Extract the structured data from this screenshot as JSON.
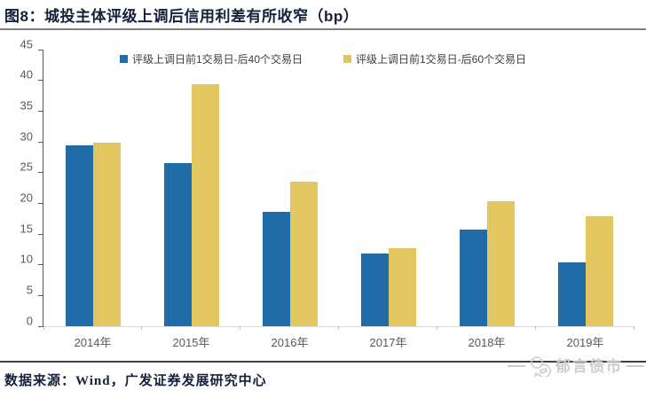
{
  "header": {
    "title": "图8：城投主体评级上调后信用利差有所收窄（bp）"
  },
  "chart_data": {
    "type": "bar",
    "categories": [
      "2014年",
      "2015年",
      "2016年",
      "2017年",
      "2018年",
      "2019年"
    ],
    "series": [
      {
        "name": "评级上调日前1交易日-后40个交易日",
        "color": "#1F6CA8",
        "values": [
          29.4,
          26.6,
          18.6,
          11.8,
          15.7,
          10.4
        ]
      },
      {
        "name": "评级上调日前1交易日-后60个交易日",
        "color": "#E2C65F",
        "values": [
          29.8,
          39.4,
          23.5,
          12.7,
          20.3,
          17.9
        ]
      }
    ],
    "ylim": [
      0,
      45
    ],
    "yticks": [
      0,
      5,
      10,
      15,
      20,
      25,
      30,
      35,
      40,
      45
    ],
    "grid": false,
    "legend_position": "top-center",
    "xlabel": "",
    "ylabel": ""
  },
  "footer": {
    "source": "数据来源：Wind，广发证券发展研究中心",
    "logo_text": "郁言债市"
  },
  "colors": {
    "series1": "#1F6CA8",
    "series2": "#E2C65F",
    "title_text": "#14203C",
    "axis_text": "#595959",
    "logo_gray": "#CCCCCC"
  }
}
